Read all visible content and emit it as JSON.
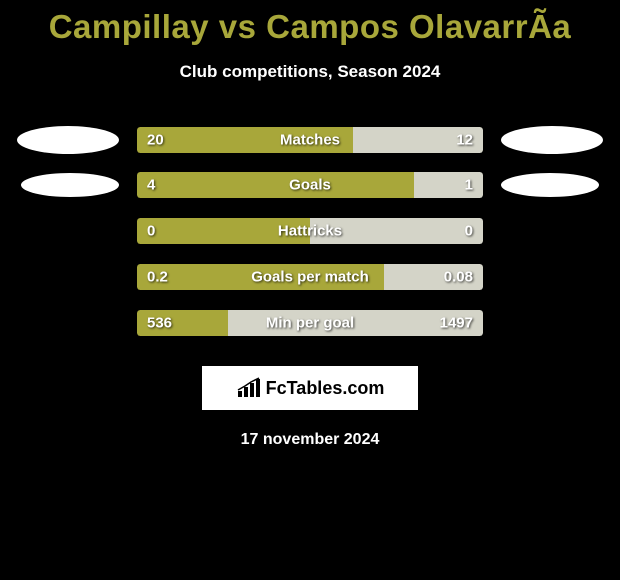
{
  "title": "Campillay vs Campos OlavarrÃ­a",
  "subtitle": "Club competitions, Season 2024",
  "date": "17 november 2024",
  "logo_text": "FcTables.com",
  "colors": {
    "primary": "#a8a73a",
    "secondary": "#d4d4c8",
    "background": "#000000"
  },
  "bars": [
    {
      "label": "Matches",
      "left_value": "20",
      "right_value": "12",
      "left_numeric": 20,
      "right_numeric": 12,
      "left_pct": 62.5,
      "right_pct": 37.5,
      "left_color": "#a8a73a",
      "right_color": "#d4d4c8",
      "show_avatars": true
    },
    {
      "label": "Goals",
      "left_value": "4",
      "right_value": "1",
      "left_numeric": 4,
      "right_numeric": 1,
      "left_pct": 80,
      "right_pct": 20,
      "left_color": "#a8a73a",
      "right_color": "#d4d4c8",
      "show_avatars": true
    },
    {
      "label": "Hattricks",
      "left_value": "0",
      "right_value": "0",
      "left_numeric": 0,
      "right_numeric": 0,
      "left_pct": 50,
      "right_pct": 50,
      "left_color": "#a8a73a",
      "right_color": "#d4d4c8",
      "show_avatars": false
    },
    {
      "label": "Goals per match",
      "left_value": "0.2",
      "right_value": "0.08",
      "left_numeric": 0.2,
      "right_numeric": 0.08,
      "left_pct": 71.4,
      "right_pct": 28.6,
      "left_color": "#a8a73a",
      "right_color": "#d4d4c8",
      "show_avatars": false
    },
    {
      "label": "Min per goal",
      "left_value": "536",
      "right_value": "1497",
      "left_numeric": 536,
      "right_numeric": 1497,
      "left_pct": 26.4,
      "right_pct": 73.6,
      "left_color": "#a8a73a",
      "right_color": "#d4d4c8",
      "show_avatars": false
    }
  ]
}
